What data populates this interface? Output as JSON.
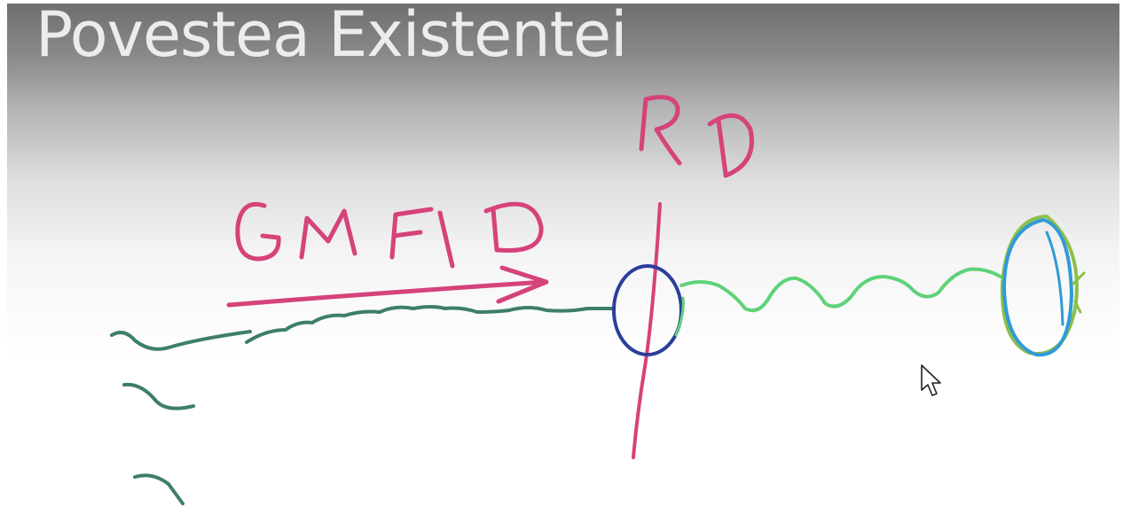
{
  "slide": {
    "title": "Povestea Existentei"
  },
  "handwriting": {
    "vertical_label": "RD",
    "arrow_label": "GMFD"
  },
  "colors": {
    "pink_ink": "#d6427a",
    "dark_green_ink": "#3e7e6a",
    "light_green_ink": "#5fd27a",
    "navy_ink": "#2c3e9a",
    "cyan_ink": "#2f9bd6",
    "olive_ink": "#8bbf4a",
    "title_text": "#ececec"
  },
  "icons": {
    "pointer": "mouse-cursor-icon"
  }
}
